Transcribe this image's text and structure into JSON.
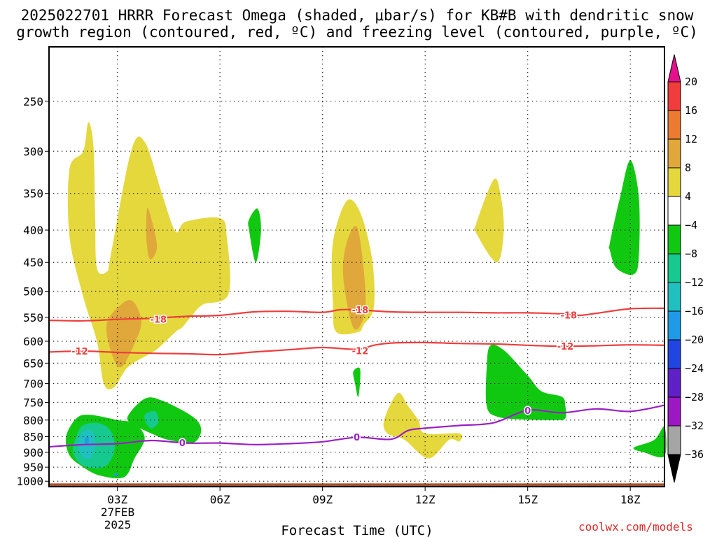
{
  "chart_data": {
    "type": "time-height cross section (shaded omega with contours)",
    "title_line1": "2025022701 HRRR Forecast Omega (shaded, μbar/s) for KB#B with dendritic snow",
    "title_line2": "growth region (contoured, red, ºC) and freezing level (contoured, purple, ºC)",
    "xlabel": "Forecast Time (UTC)",
    "x_ticks": [
      {
        "hour": 3,
        "label": "03Z"
      },
      {
        "hour": 6,
        "label": "06Z"
      },
      {
        "hour": 9,
        "label": "09Z"
      },
      {
        "hour": 12,
        "label": "12Z"
      },
      {
        "hour": 15,
        "label": "15Z"
      },
      {
        "hour": 18,
        "label": "18Z"
      }
    ],
    "date_label_1": "27FEB",
    "date_label_2": "2025",
    "x_range_hours": [
      1,
      19
    ],
    "y_axis": "pressure (hPa), log scale",
    "y_ticks": [
      250,
      300,
      350,
      400,
      450,
      500,
      550,
      600,
      650,
      700,
      750,
      800,
      850,
      900,
      950,
      1000
    ],
    "y_range_hpa": [
      205,
      1020
    ],
    "grid": "dotted",
    "colorbar": {
      "levels": [
        "20",
        "16",
        "12",
        "8",
        "4",
        "−4",
        "−8",
        "−12",
        "−16",
        "−20",
        "−24",
        "−28",
        "−32",
        "−36"
      ],
      "colors": [
        "#e60f8c",
        "#f03c3c",
        "#ec7a30",
        "#e0a83a",
        "#e5d83d",
        "#ffffff",
        "#11c811",
        "#15c98f",
        "#20c0c0",
        "#1f9ae8",
        "#2045e0",
        "#6020c8",
        "#9c18c4",
        "#a5a5a5",
        "#000000"
      ]
    },
    "contours": [
      {
        "name": "-18",
        "color": "#ef3d3d",
        "points": [
          [
            1,
            556
          ],
          [
            2,
            557
          ],
          [
            3,
            554
          ],
          [
            4,
            552
          ],
          [
            5,
            548
          ],
          [
            6,
            546
          ],
          [
            7,
            539
          ],
          [
            8,
            538
          ],
          [
            9,
            540
          ],
          [
            9.5,
            535
          ],
          [
            10,
            535
          ],
          [
            11,
            539
          ],
          [
            12,
            540
          ],
          [
            13,
            540
          ],
          [
            14,
            541
          ],
          [
            15,
            541
          ],
          [
            16,
            543
          ],
          [
            16.5,
            546
          ],
          [
            17,
            542
          ],
          [
            18,
            533
          ],
          [
            19,
            532
          ]
        ],
        "labels": [
          {
            "x": 4.2,
            "p": 554
          },
          {
            "x": 10.1,
            "p": 535
          },
          {
            "x": 16.2,
            "p": 545
          }
        ]
      },
      {
        "name": "-12",
        "color": "#ef3d3d",
        "points": [
          [
            1,
            624
          ],
          [
            2,
            622
          ],
          [
            3,
            625
          ],
          [
            4,
            627
          ],
          [
            5,
            628
          ],
          [
            6,
            630
          ],
          [
            7,
            624
          ],
          [
            8,
            619
          ],
          [
            9,
            614
          ],
          [
            10,
            618
          ],
          [
            10.5,
            609
          ],
          [
            11,
            604
          ],
          [
            12,
            603
          ],
          [
            13,
            605
          ],
          [
            14,
            606
          ],
          [
            15,
            609
          ],
          [
            16,
            611
          ],
          [
            17,
            610
          ],
          [
            18,
            608
          ],
          [
            19,
            609
          ]
        ],
        "labels": [
          {
            "x": 1.9,
            "p": 622
          },
          {
            "x": 10.1,
            "p": 621
          },
          {
            "x": 16.1,
            "p": 611
          }
        ]
      },
      {
        "name": "0",
        "color": "#9b1fc4",
        "points": [
          [
            1,
            882
          ],
          [
            2,
            875
          ],
          [
            3,
            872
          ],
          [
            4,
            862
          ],
          [
            5,
            870
          ],
          [
            6,
            870
          ],
          [
            7,
            875
          ],
          [
            8,
            872
          ],
          [
            9,
            866
          ],
          [
            10,
            852
          ],
          [
            11,
            858
          ],
          [
            11.5,
            831
          ],
          [
            12,
            824
          ],
          [
            13,
            816
          ],
          [
            14,
            808
          ],
          [
            15,
            772
          ],
          [
            16,
            779
          ],
          [
            17,
            768
          ],
          [
            18,
            775
          ],
          [
            19,
            758
          ]
        ],
        "labels": [
          {
            "x": 4.9,
            "p": 869
          },
          {
            "x": 10.0,
            "p": 851
          },
          {
            "x": 15.0,
            "p": 772
          }
        ]
      }
    ],
    "omega_regions": [
      {
        "level": "4",
        "color": "#e5d83d",
        "points": [
          [
            2,
            300
          ],
          [
            2.15,
            270
          ],
          [
            2.3,
            295
          ],
          [
            2.35,
            380
          ],
          [
            2.4,
            460
          ],
          [
            2.7,
            465
          ],
          [
            2.8,
            440
          ],
          [
            3.4,
            300
          ],
          [
            3.8,
            290
          ],
          [
            4.3,
            350
          ],
          [
            4.7,
            402
          ],
          [
            5,
            388
          ],
          [
            6,
            383
          ],
          [
            6.2,
            410
          ],
          [
            6.25,
            505
          ],
          [
            5.5,
            525
          ],
          [
            5.2,
            545
          ],
          [
            4.9,
            570
          ],
          [
            4.7,
            580
          ],
          [
            4.2,
            615
          ],
          [
            3.9,
            630
          ],
          [
            3.3,
            660
          ],
          [
            2.9,
            710
          ],
          [
            2.6,
            700
          ],
          [
            2.4,
            600
          ],
          [
            2,
            510
          ],
          [
            1.6,
            410
          ],
          [
            1.6,
            320
          ]
        ]
      },
      {
        "level": "8",
        "color": "#e0a83a",
        "points": [
          [
            3.2,
            520
          ],
          [
            3.5,
            522
          ],
          [
            3.7,
            560
          ],
          [
            3.5,
            605
          ],
          [
            3.1,
            660
          ],
          [
            2.8,
            620
          ],
          [
            2.7,
            560
          ]
        ]
      },
      {
        "level": "8",
        "color": "#e0a83a",
        "points": [
          [
            3.9,
            370
          ],
          [
            4.1,
            405
          ],
          [
            4.15,
            430
          ],
          [
            3.95,
            445
          ],
          [
            3.85,
            415
          ],
          [
            3.85,
            380
          ]
        ]
      },
      {
        "level": "4",
        "color": "#e5d83d",
        "points": [
          [
            9.3,
            420
          ],
          [
            9.7,
            360
          ],
          [
            10.1,
            375
          ],
          [
            10.45,
            445
          ],
          [
            10.5,
            530
          ],
          [
            10.2,
            565
          ],
          [
            10.05,
            580
          ],
          [
            9.4,
            580
          ],
          [
            9.3,
            520
          ]
        ]
      },
      {
        "level": "8",
        "color": "#e0a83a",
        "points": [
          [
            9.7,
            420
          ],
          [
            10,
            395
          ],
          [
            10.2,
            460
          ],
          [
            10.25,
            535
          ],
          [
            10,
            575
          ],
          [
            9.8,
            550
          ],
          [
            9.6,
            470
          ]
        ]
      },
      {
        "level": "4",
        "color": "#e5d83d",
        "points": [
          [
            13.5,
            390
          ],
          [
            14,
            333
          ],
          [
            14.2,
            350
          ],
          [
            14.3,
            400
          ],
          [
            14.1,
            450
          ],
          [
            13.5,
            405
          ]
        ]
      },
      {
        "level": "4",
        "color": "#e5d83d",
        "points": [
          [
            10.8,
            800
          ],
          [
            11.2,
            725
          ],
          [
            11.5,
            760
          ],
          [
            11.8,
            800
          ],
          [
            12,
            840
          ],
          [
            13,
            840
          ],
          [
            13.0,
            865
          ],
          [
            12.7,
            860
          ],
          [
            12.1,
            920
          ],
          [
            11.4,
            860
          ],
          [
            10.9,
            840
          ]
        ]
      },
      {
        "level": "-4",
        "color": "#11c811",
        "points": [
          [
            6.85,
            385
          ],
          [
            7.1,
            370
          ],
          [
            7.2,
            400
          ],
          [
            7.05,
            450
          ],
          [
            6.85,
            400
          ]
        ]
      },
      {
        "level": "-4",
        "color": "#11c811",
        "points": [
          [
            9.9,
            670
          ],
          [
            10.1,
            665
          ],
          [
            10.05,
            735
          ],
          [
            9.95,
            700
          ]
        ]
      },
      {
        "level": "-4",
        "color": "#11c811",
        "points": [
          [
            13.8,
            660
          ],
          [
            13.9,
            610
          ],
          [
            14.3,
            620
          ],
          [
            15,
            680
          ],
          [
            15.4,
            720
          ],
          [
            16,
            735
          ],
          [
            16.1,
            760
          ],
          [
            16.1,
            795
          ],
          [
            15.8,
            800
          ],
          [
            14.8,
            798
          ],
          [
            14.1,
            790
          ],
          [
            13.8,
            760
          ]
        ]
      },
      {
        "level": "-4",
        "color": "#11c811",
        "points": [
          [
            17.4,
            420
          ],
          [
            17.7,
            355
          ],
          [
            18,
            310
          ],
          [
            18.25,
            355
          ],
          [
            18.25,
            440
          ],
          [
            18.1,
            470
          ],
          [
            17.6,
            460
          ],
          [
            17.4,
            430
          ]
        ]
      },
      {
        "level": "-4",
        "color": "#11c811",
        "points": [
          [
            18.1,
            885
          ],
          [
            18.7,
            860
          ],
          [
            19,
            820
          ],
          [
            19,
            912
          ],
          [
            18.4,
            900
          ]
        ]
      },
      {
        "level": "-4",
        "color": "#11c811",
        "points": [
          [
            1.8,
            795
          ],
          [
            2.2,
            785
          ],
          [
            3,
            800
          ],
          [
            3.5,
            810
          ],
          [
            3.8,
            855
          ],
          [
            3.5,
            920
          ],
          [
            3.2,
            985
          ],
          [
            2.5,
            980
          ],
          [
            2,
            950
          ],
          [
            1.6,
            910
          ],
          [
            1.5,
            850
          ]
        ]
      },
      {
        "level": "-8",
        "color": "#15c98f",
        "points": [
          [
            1.8,
            850
          ],
          [
            2,
            815
          ],
          [
            2.5,
            810
          ],
          [
            2.85,
            840
          ],
          [
            2.9,
            900
          ],
          [
            2.6,
            950
          ],
          [
            2,
            945
          ],
          [
            1.7,
            900
          ]
        ]
      },
      {
        "level": "-12",
        "color": "#20c0c0",
        "points": [
          [
            1.85,
            860
          ],
          [
            2.1,
            830
          ],
          [
            2.3,
            840
          ],
          [
            2.35,
            880
          ],
          [
            2.2,
            920
          ],
          [
            1.95,
            910
          ]
        ]
      },
      {
        "level": "-16",
        "color": "#1f9ae8",
        "points": [
          [
            2.05,
            855
          ],
          [
            2.15,
            850
          ],
          [
            2.15,
            872
          ],
          [
            2.05,
            870
          ]
        ]
      },
      {
        "level": "-16",
        "color": "#1f9ae8",
        "points": [
          [
            2.9,
            975
          ],
          [
            3,
            972
          ],
          [
            3,
            982
          ],
          [
            2.9,
            980
          ]
        ]
      },
      {
        "level": "-4",
        "color": "#11c811",
        "points": [
          [
            3.3,
            790
          ],
          [
            3.8,
            740
          ],
          [
            4.3,
            745
          ],
          [
            5.2,
            790
          ],
          [
            5.45,
            830
          ],
          [
            5.2,
            870
          ],
          [
            4.5,
            860
          ],
          [
            4.1,
            845
          ],
          [
            3.5,
            815
          ]
        ]
      },
      {
        "level": "-8",
        "color": "#15c98f",
        "points": [
          [
            3.8,
            785
          ],
          [
            4.1,
            775
          ],
          [
            4.2,
            805
          ],
          [
            4.0,
            825
          ],
          [
            3.85,
            810
          ]
        ]
      }
    ],
    "ground": {
      "top_hpa": 1008,
      "color": "#a0522d"
    }
  },
  "credit": "coolwx.com/models"
}
